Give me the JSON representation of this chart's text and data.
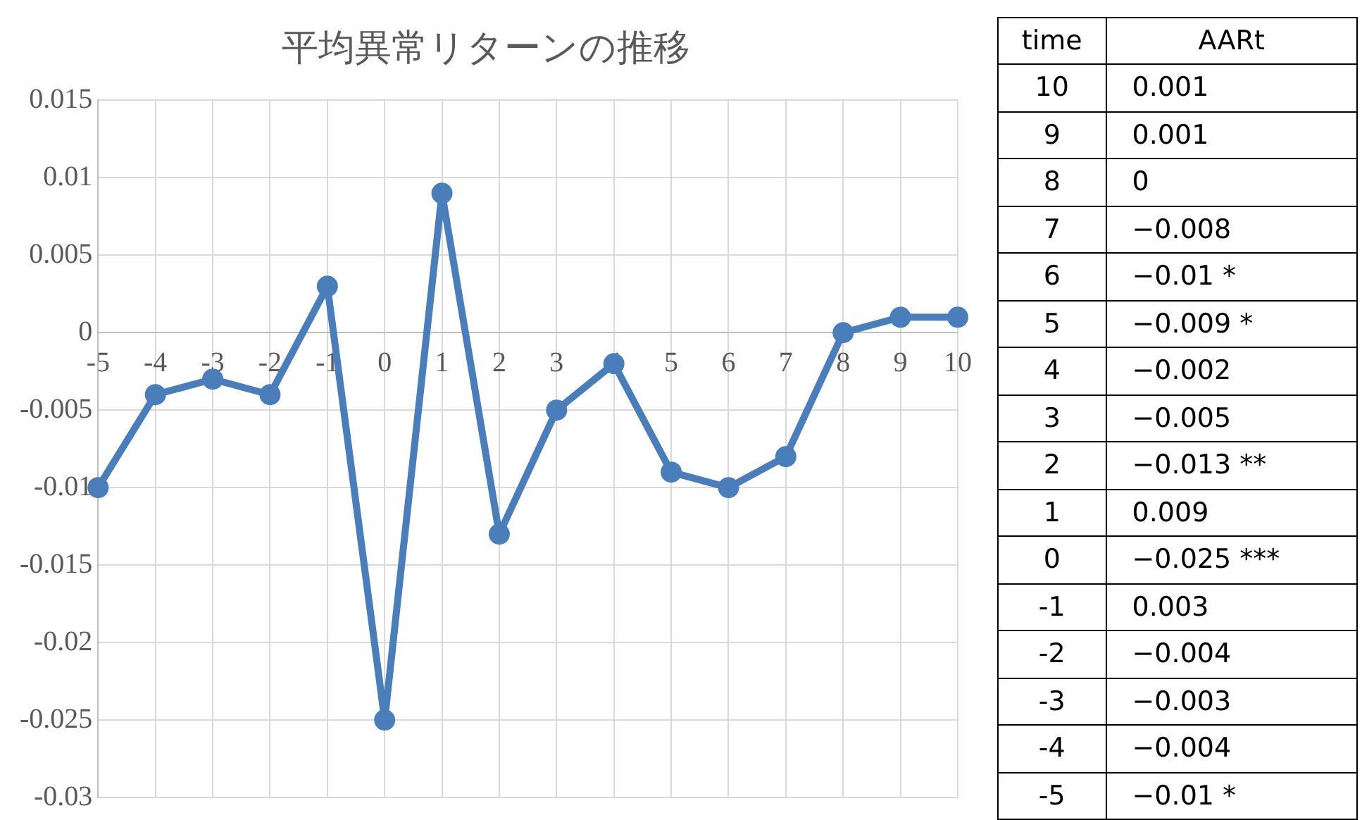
{
  "chart_data": {
    "type": "line",
    "title": "平均異常リターンの推移",
    "annotations": [
      "time",
      "AARt",
      "0.001",
      "0.001",
      "0",
      "−0.008",
      "−0.01 *",
      "−0.009 *",
      "−0.002",
      "−0.005",
      "−0.013 **",
      "0.009",
      "−0.025 ***",
      "0.003",
      "−0.004",
      "−0.003",
      "−0.004",
      "−0.01 *"
    ],
    "categories": [
      "-5",
      "-4",
      "-3",
      "-2",
      "-1",
      "0",
      "1",
      "2",
      "3",
      "4",
      "5",
      "6",
      "7",
      "8",
      "9",
      "10"
    ],
    "series": [
      {
        "color": "#4a7ebb",
        "values": [
          -0.01,
          -0.004,
          -0.003,
          -0.004,
          0.003,
          -0.025,
          0.009,
          -0.013,
          -0.005,
          -0.002,
          -0.009,
          -0.01,
          -0.008,
          0,
          0.001,
          0.001
        ]
      }
    ],
    "ylim": [
      -0.03,
      0.015
    ],
    "yticks": [
      -0.03,
      -0.025,
      -0.02,
      -0.015,
      -0.01,
      -0.005,
      0,
      0.005,
      0.01,
      0.015
    ],
    "grid": true,
    "legend": false,
    "marker": "circle",
    "line_style": "solid"
  }
}
